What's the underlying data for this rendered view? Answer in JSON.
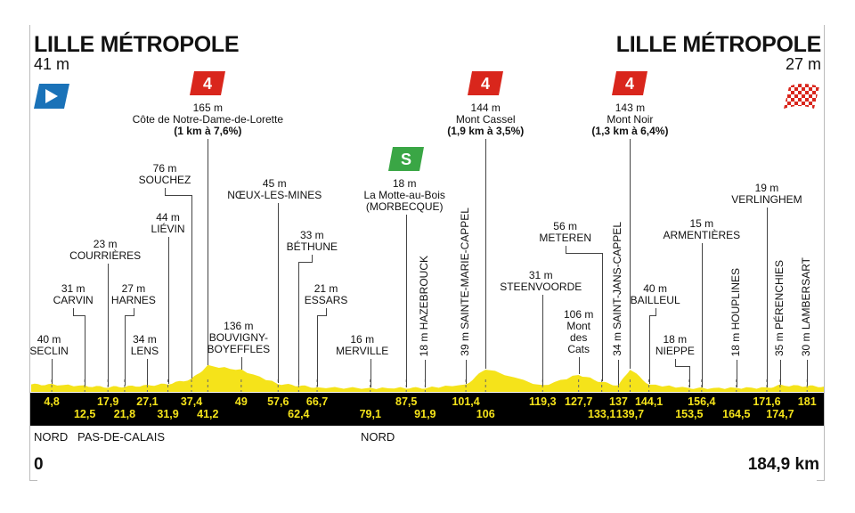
{
  "start": {
    "name": "LILLE MÉTROPOLE",
    "elevation": "41 m",
    "icon": "start-flag-icon",
    "color": "#1a72b8"
  },
  "finish": {
    "name": "LILLE MÉTROPOLE",
    "elevation": "27 m",
    "icon": "finish-checkered-flag-icon",
    "color": "#d9261c"
  },
  "colors": {
    "profile": "#f5e31a",
    "band": "#000000",
    "km_text": "#f5e31a",
    "climb_badge": "#d9261c",
    "sprint_badge": "#3aa645"
  },
  "distance": {
    "start": "0",
    "end": "184,9 km",
    "total_km": 184.9
  },
  "regions": [
    {
      "label": "NORD",
      "km": 0
    },
    {
      "label": "PAS-DE-CALAIS",
      "km": 10
    },
    {
      "label": "NORD",
      "km": 76
    }
  ],
  "places": [
    {
      "km": 4.8,
      "km_label": "4,8",
      "elev": "40 m",
      "name": "SECLIN"
    },
    {
      "km": 12.5,
      "km_label": "12,5",
      "elev": "31 m",
      "name": "CARVIN"
    },
    {
      "km": 17.9,
      "km_label": "17,9",
      "elev": "23 m",
      "name": "COURRIÈRES"
    },
    {
      "km": 21.8,
      "km_label": "21,8",
      "elev": "27 m",
      "name": "HARNES"
    },
    {
      "km": 27.1,
      "km_label": "27,1",
      "elev": "34 m",
      "name": "LENS"
    },
    {
      "km": 31.9,
      "km_label": "31,9",
      "elev": "44 m",
      "name": "LIÉVIN"
    },
    {
      "km": 37.4,
      "km_label": "37,4",
      "elev": "76 m",
      "name": "SOUCHEZ"
    },
    {
      "km": 41.2,
      "km_label": "41,2",
      "elev": "165 m",
      "name": "Côte de Notre-Dame-de-Lorette",
      "detail": "(1 km à 7,6%)",
      "badge": "4",
      "badge_type": "climb"
    },
    {
      "km": 49,
      "km_label": "49",
      "elev": "136 m",
      "name": "BOUVIGNY-\nBOYEFFLES"
    },
    {
      "km": 57.6,
      "km_label": "57,6",
      "elev": "45 m",
      "name": "NŒUX-LES-MINES"
    },
    {
      "km": 62.4,
      "km_label": "62,4",
      "elev": "33 m",
      "name": "BÉTHUNE"
    },
    {
      "km": 66.7,
      "km_label": "66,7",
      "elev": "21 m",
      "name": "ESSARS"
    },
    {
      "km": 79.1,
      "km_label": "79,1",
      "elev": "16 m",
      "name": "MERVILLE"
    },
    {
      "km": 87.5,
      "km_label": "87,5",
      "elev": "18 m",
      "name": "La Motte-au-Bois\n(MORBECQUE)",
      "badge": "S",
      "badge_type": "sprint"
    },
    {
      "km": 91.9,
      "km_label": "91,9",
      "elev": "18 m",
      "name": "HAZEBROUCK"
    },
    {
      "km": 101.4,
      "km_label": "101,4",
      "elev": "39 m",
      "name": "SAINTE-MARIE-CAPPEL"
    },
    {
      "km": 106,
      "km_label": "106",
      "elev": "144 m",
      "name": "Mont Cassel",
      "detail": "(1,9 km à 3,5%)",
      "badge": "4",
      "badge_type": "climb"
    },
    {
      "km": 119.3,
      "km_label": "119,3",
      "elev": "31 m",
      "name": "STEENVOORDE"
    },
    {
      "km": 127.7,
      "km_label": "127,7",
      "elev": "106 m",
      "name": "Mont\ndes\nCats"
    },
    {
      "km": 133.1,
      "km_label": "133,1",
      "elev": "56 m",
      "name": "METEREN"
    },
    {
      "km": 137,
      "km_label": "137",
      "elev": "34 m",
      "name": "SAINT-JANS-CAPPEL"
    },
    {
      "km": 139.7,
      "km_label": "139,7",
      "elev": "143 m",
      "name": "Mont Noir",
      "detail": "(1,3 km à 6,4%)",
      "badge": "4",
      "badge_type": "climb"
    },
    {
      "km": 144.1,
      "km_label": "144,1",
      "elev": "40 m",
      "name": "BAILLEUL"
    },
    {
      "km": 153.5,
      "km_label": "153,5",
      "elev": "18 m",
      "name": "NIEPPE"
    },
    {
      "km": 156.4,
      "km_label": "156,4",
      "elev": "15 m",
      "name": "ARMENTIÈRES"
    },
    {
      "km": 164.5,
      "km_label": "164,5",
      "elev": "18 m",
      "name": "HOUPLINES"
    },
    {
      "km": 171.6,
      "km_label": "171,6",
      "elev": "19 m",
      "name": "VERLINGHEM"
    },
    {
      "km": 174.7,
      "km_label": "174,7",
      "elev": "35 m",
      "name": "PÉRENCHIES"
    },
    {
      "km": 181,
      "km_label": "181",
      "elev": "30 m",
      "name": "LAMBERSART"
    }
  ]
}
